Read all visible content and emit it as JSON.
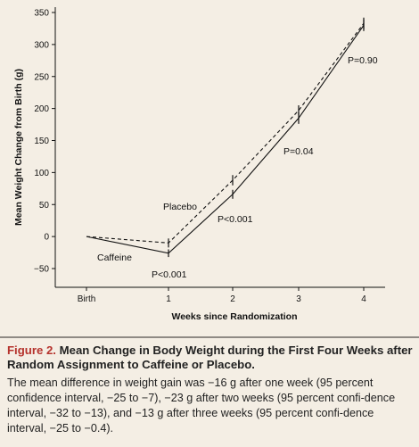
{
  "chart_data": {
    "type": "line",
    "xlabel": "Weeks since Randomization",
    "ylabel": "Mean Weight Change from Birth (g)",
    "categories": [
      "Birth",
      "1",
      "2",
      "3",
      "4"
    ],
    "ylim": [
      -70,
      350
    ],
    "yticks": [
      -50,
      0,
      50,
      100,
      150,
      200,
      250,
      300,
      350
    ],
    "series": [
      {
        "name": "Placebo",
        "style": "dashed",
        "values": [
          0,
          -10,
          88,
          197,
          333
        ],
        "error_bars": [
          null,
          7,
          8,
          8,
          9
        ]
      },
      {
        "name": "Caffeine",
        "style": "solid",
        "values": [
          0,
          -26,
          66,
          185,
          330
        ],
        "error_bars": [
          null,
          6,
          7,
          9,
          9
        ]
      }
    ],
    "annotations": [
      {
        "text": "P<0.001",
        "x_index": 1,
        "y": -52
      },
      {
        "text": "P<0.001",
        "x_index": 2,
        "y": 25
      },
      {
        "text": "P=0.04",
        "x_index": 3,
        "y": 130
      },
      {
        "text": "P=0.90",
        "x_index": 4,
        "y": 270
      }
    ]
  },
  "caption": {
    "label": "Figure 2.",
    "title": "Mean Change in Body Weight during the First Four Weeks after Random Assignment to Caffeine or Placebo.",
    "body": "The mean difference in weight gain was −16 g after one week (95 percent confidence interval, −25 to −7), −23 g after two weeks (95 percent confi-dence interval, −32 to −13), and −13 g after three weeks (95 percent confi-dence interval, −25 to −0.4)."
  },
  "colors": {
    "background": "#f4eee4",
    "line": "#111111",
    "figure_label": "#b5322c"
  }
}
